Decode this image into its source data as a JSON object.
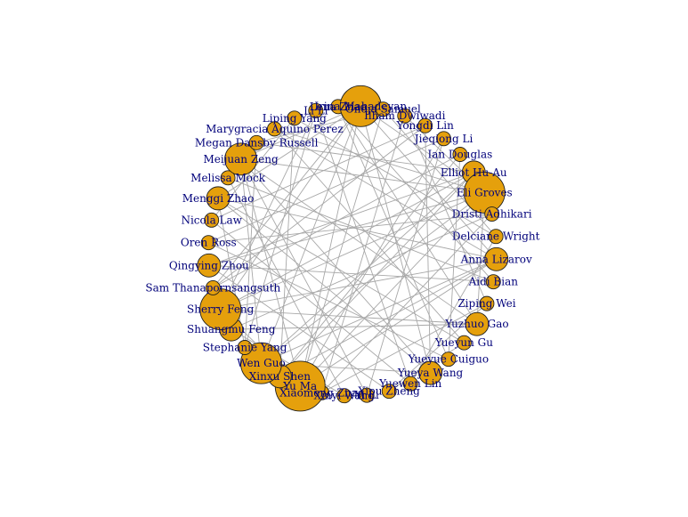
{
  "style": {
    "edge_color": "#a8a8a8",
    "node_fill": "#e5a00c",
    "node_stroke": "#1f1f1f",
    "label_color": "#00007a",
    "background": "#ffffff"
  },
  "network": {
    "layout": "circle",
    "nodes": [
      {
        "name": "Lena Zhao",
        "size": 1
      },
      {
        "name": "Irina Mahadevan",
        "size": 4
      },
      {
        "name": "Onoja Samuel",
        "size": 1
      },
      {
        "name": "Ilham Dwiwadi",
        "size": 1
      },
      {
        "name": "Yongdi Lin",
        "size": 1
      },
      {
        "name": "Jieqiong Li",
        "size": 1
      },
      {
        "name": "Ian Douglas",
        "size": 1
      },
      {
        "name": "Elliot Hu-Au",
        "size": 2
      },
      {
        "name": "Eli Groves",
        "size": 4
      },
      {
        "name": "Dristi Adhikari",
        "size": 1
      },
      {
        "name": "Delciane Wright",
        "size": 1
      },
      {
        "name": "Anna Lizarov",
        "size": 2
      },
      {
        "name": "Aidi Bian",
        "size": 1
      },
      {
        "name": "Ziping Wei",
        "size": 1
      },
      {
        "name": "Yuzhuo Gao",
        "size": 2
      },
      {
        "name": "Yueyun Gu",
        "size": 1
      },
      {
        "name": "Yueyue Cuiguo",
        "size": 1
      },
      {
        "name": "Yueya Wang",
        "size": 2
      },
      {
        "name": "Yuewen Lin",
        "size": 1
      },
      {
        "name": "Yipu Zheng",
        "size": 1
      },
      {
        "name": "Yi Li",
        "size": 1
      },
      {
        "name": "Xinyi Wang",
        "size": 1
      },
      {
        "name": "Xiaomeng Zhao",
        "size": 1
      },
      {
        "name": "Yu Ma",
        "size": 5
      },
      {
        "name": "Xinxu Shen",
        "size": 2
      },
      {
        "name": "Wen Guo",
        "size": 4
      },
      {
        "name": "Stephanie Yang",
        "size": 1
      },
      {
        "name": "Shuangmu Feng",
        "size": 2
      },
      {
        "name": "Sherry Feng",
        "size": 4
      },
      {
        "name": "Sam Thanapornsangsuth",
        "size": 1
      },
      {
        "name": "Qingying Zhou",
        "size": 2
      },
      {
        "name": "Oren Ross",
        "size": 1
      },
      {
        "name": "Nicola Law",
        "size": 1
      },
      {
        "name": "Menggi Zhao",
        "size": 2
      },
      {
        "name": "Melissa Mock",
        "size": 1
      },
      {
        "name": "Meijuan Zeng",
        "size": 3
      },
      {
        "name": "Megan Dansby Russell",
        "size": 1
      },
      {
        "name": "Marygracia Aquino Perez",
        "size": 1
      },
      {
        "name": "Liping Yang",
        "size": 1
      },
      {
        "name": "Li Li",
        "size": 1
      }
    ],
    "edges": [
      [
        1,
        8
      ],
      [
        1,
        23
      ],
      [
        1,
        25
      ],
      [
        1,
        28
      ],
      [
        1,
        35
      ],
      [
        1,
        11
      ],
      [
        1,
        17
      ],
      [
        1,
        33
      ],
      [
        8,
        23
      ],
      [
        8,
        28
      ],
      [
        8,
        25
      ],
      [
        8,
        35
      ],
      [
        8,
        14
      ],
      [
        8,
        30
      ],
      [
        8,
        3
      ],
      [
        23,
        28
      ],
      [
        23,
        35
      ],
      [
        23,
        25
      ],
      [
        23,
        11
      ],
      [
        23,
        5
      ],
      [
        23,
        2
      ],
      [
        25,
        11
      ],
      [
        25,
        35
      ],
      [
        25,
        7
      ],
      [
        25,
        17
      ],
      [
        28,
        11
      ],
      [
        28,
        14
      ],
      [
        28,
        7
      ],
      [
        28,
        39
      ],
      [
        35,
        17
      ],
      [
        35,
        14
      ],
      [
        35,
        20
      ],
      [
        7,
        30
      ],
      [
        7,
        24
      ],
      [
        7,
        36
      ],
      [
        11,
        33
      ],
      [
        11,
        24
      ],
      [
        11,
        37
      ],
      [
        14,
        27
      ],
      [
        14,
        0
      ],
      [
        17,
        33
      ],
      [
        17,
        4
      ],
      [
        24,
        6
      ],
      [
        24,
        38
      ],
      [
        27,
        9
      ],
      [
        27,
        21
      ],
      [
        30,
        12
      ],
      [
        30,
        19
      ],
      [
        33,
        15
      ],
      [
        33,
        26
      ],
      [
        6,
        29
      ],
      [
        9,
        31
      ],
      [
        12,
        34
      ],
      [
        15,
        37
      ],
      [
        18,
        32
      ],
      [
        21,
        34
      ],
      [
        26,
        36
      ],
      [
        29,
        4
      ],
      [
        32,
        38
      ],
      [
        36,
        2
      ],
      [
        16,
        31
      ],
      [
        13,
        22
      ],
      [
        10,
        38
      ],
      [
        5,
        20
      ],
      [
        3,
        22
      ],
      [
        0,
        16
      ],
      [
        18,
        10
      ],
      [
        19,
        13
      ],
      [
        39,
        26
      ],
      [
        20,
        21
      ],
      [
        22,
        9
      ],
      [
        31,
        5
      ],
      [
        32,
        4
      ],
      [
        2,
        10
      ],
      [
        3,
        13
      ],
      [
        16,
        6
      ],
      [
        0,
        12
      ],
      [
        15,
        19
      ],
      [
        18,
        39
      ],
      [
        29,
        1
      ],
      [
        37,
        8
      ],
      [
        26,
        25
      ]
    ]
  }
}
